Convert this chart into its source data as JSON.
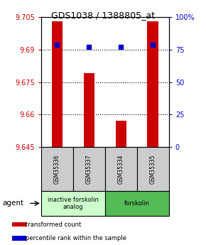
{
  "title": "GDS1038 / 1388805_at",
  "samples": [
    "GSM35336",
    "GSM35337",
    "GSM35334",
    "GSM35335"
  ],
  "bar_values": [
    9.703,
    9.679,
    9.657,
    9.703
  ],
  "percentile_values": [
    79,
    77,
    77,
    79
  ],
  "ylim_left": [
    9.645,
    9.705
  ],
  "ylim_right": [
    0,
    100
  ],
  "yticks_left": [
    9.645,
    9.66,
    9.675,
    9.69,
    9.705
  ],
  "ytick_labels_left": [
    "9.645",
    "9.66",
    "9.675",
    "9.69",
    "9.705"
  ],
  "yticks_right": [
    0,
    25,
    50,
    75,
    100
  ],
  "ytick_labels_right": [
    "0",
    "25",
    "50",
    "75",
    "100%"
  ],
  "bar_color": "#cc0000",
  "dot_color": "#0000cc",
  "bar_bottom": 9.645,
  "groups": [
    {
      "label": "inactive forskolin\nanalog",
      "color": "#ccffcc",
      "samples": [
        0,
        1
      ]
    },
    {
      "label": "forskolin",
      "color": "#55bb55",
      "samples": [
        2,
        3
      ]
    }
  ],
  "agent_label": "agent",
  "legend_bar_label": "transformed count",
  "legend_dot_label": "percentile rank within the sample",
  "bar_width": 0.35,
  "axis_color_left": "#cc0000",
  "axis_color_right": "#0000cc",
  "sample_box_color": "#cccccc",
  "border_color": "#000000"
}
